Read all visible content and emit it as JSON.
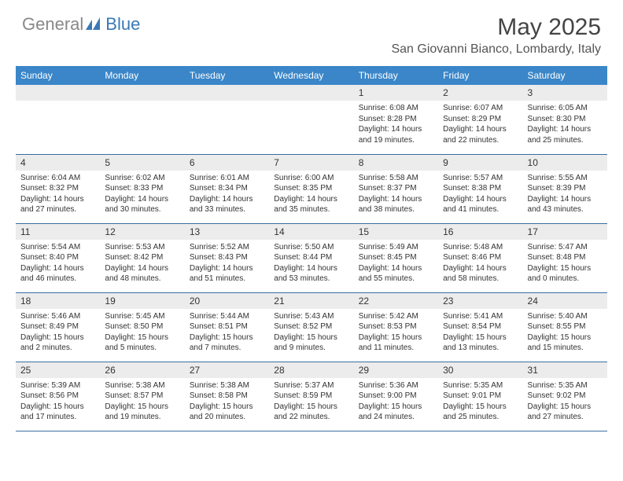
{
  "brand": {
    "part1": "General",
    "part2": "Blue"
  },
  "title": "May 2025",
  "location": "San Giovanni Bianco, Lombardy, Italy",
  "colors": {
    "header_bg": "#3a86c8",
    "header_text": "#ffffff",
    "daynum_bg": "#ececec",
    "border": "#3a6ea0",
    "brand_gray": "#888888",
    "brand_blue": "#3a78b5"
  },
  "day_headers": [
    "Sunday",
    "Monday",
    "Tuesday",
    "Wednesday",
    "Thursday",
    "Friday",
    "Saturday"
  ],
  "weeks": [
    [
      null,
      null,
      null,
      null,
      {
        "n": "1",
        "sunrise": "6:08 AM",
        "sunset": "8:28 PM",
        "dh": "14",
        "dm": "19"
      },
      {
        "n": "2",
        "sunrise": "6:07 AM",
        "sunset": "8:29 PM",
        "dh": "14",
        "dm": "22"
      },
      {
        "n": "3",
        "sunrise": "6:05 AM",
        "sunset": "8:30 PM",
        "dh": "14",
        "dm": "25"
      }
    ],
    [
      {
        "n": "4",
        "sunrise": "6:04 AM",
        "sunset": "8:32 PM",
        "dh": "14",
        "dm": "27"
      },
      {
        "n": "5",
        "sunrise": "6:02 AM",
        "sunset": "8:33 PM",
        "dh": "14",
        "dm": "30"
      },
      {
        "n": "6",
        "sunrise": "6:01 AM",
        "sunset": "8:34 PM",
        "dh": "14",
        "dm": "33"
      },
      {
        "n": "7",
        "sunrise": "6:00 AM",
        "sunset": "8:35 PM",
        "dh": "14",
        "dm": "35"
      },
      {
        "n": "8",
        "sunrise": "5:58 AM",
        "sunset": "8:37 PM",
        "dh": "14",
        "dm": "38"
      },
      {
        "n": "9",
        "sunrise": "5:57 AM",
        "sunset": "8:38 PM",
        "dh": "14",
        "dm": "41"
      },
      {
        "n": "10",
        "sunrise": "5:55 AM",
        "sunset": "8:39 PM",
        "dh": "14",
        "dm": "43"
      }
    ],
    [
      {
        "n": "11",
        "sunrise": "5:54 AM",
        "sunset": "8:40 PM",
        "dh": "14",
        "dm": "46"
      },
      {
        "n": "12",
        "sunrise": "5:53 AM",
        "sunset": "8:42 PM",
        "dh": "14",
        "dm": "48"
      },
      {
        "n": "13",
        "sunrise": "5:52 AM",
        "sunset": "8:43 PM",
        "dh": "14",
        "dm": "51"
      },
      {
        "n": "14",
        "sunrise": "5:50 AM",
        "sunset": "8:44 PM",
        "dh": "14",
        "dm": "53"
      },
      {
        "n": "15",
        "sunrise": "5:49 AM",
        "sunset": "8:45 PM",
        "dh": "14",
        "dm": "55"
      },
      {
        "n": "16",
        "sunrise": "5:48 AM",
        "sunset": "8:46 PM",
        "dh": "14",
        "dm": "58"
      },
      {
        "n": "17",
        "sunrise": "5:47 AM",
        "sunset": "8:48 PM",
        "dh": "15",
        "dm": "0"
      }
    ],
    [
      {
        "n": "18",
        "sunrise": "5:46 AM",
        "sunset": "8:49 PM",
        "dh": "15",
        "dm": "2"
      },
      {
        "n": "19",
        "sunrise": "5:45 AM",
        "sunset": "8:50 PM",
        "dh": "15",
        "dm": "5"
      },
      {
        "n": "20",
        "sunrise": "5:44 AM",
        "sunset": "8:51 PM",
        "dh": "15",
        "dm": "7"
      },
      {
        "n": "21",
        "sunrise": "5:43 AM",
        "sunset": "8:52 PM",
        "dh": "15",
        "dm": "9"
      },
      {
        "n": "22",
        "sunrise": "5:42 AM",
        "sunset": "8:53 PM",
        "dh": "15",
        "dm": "11"
      },
      {
        "n": "23",
        "sunrise": "5:41 AM",
        "sunset": "8:54 PM",
        "dh": "15",
        "dm": "13"
      },
      {
        "n": "24",
        "sunrise": "5:40 AM",
        "sunset": "8:55 PM",
        "dh": "15",
        "dm": "15"
      }
    ],
    [
      {
        "n": "25",
        "sunrise": "5:39 AM",
        "sunset": "8:56 PM",
        "dh": "15",
        "dm": "17"
      },
      {
        "n": "26",
        "sunrise": "5:38 AM",
        "sunset": "8:57 PM",
        "dh": "15",
        "dm": "19"
      },
      {
        "n": "27",
        "sunrise": "5:38 AM",
        "sunset": "8:58 PM",
        "dh": "15",
        "dm": "20"
      },
      {
        "n": "28",
        "sunrise": "5:37 AM",
        "sunset": "8:59 PM",
        "dh": "15",
        "dm": "22"
      },
      {
        "n": "29",
        "sunrise": "5:36 AM",
        "sunset": "9:00 PM",
        "dh": "15",
        "dm": "24"
      },
      {
        "n": "30",
        "sunrise": "5:35 AM",
        "sunset": "9:01 PM",
        "dh": "15",
        "dm": "25"
      },
      {
        "n": "31",
        "sunrise": "5:35 AM",
        "sunset": "9:02 PM",
        "dh": "15",
        "dm": "27"
      }
    ]
  ]
}
